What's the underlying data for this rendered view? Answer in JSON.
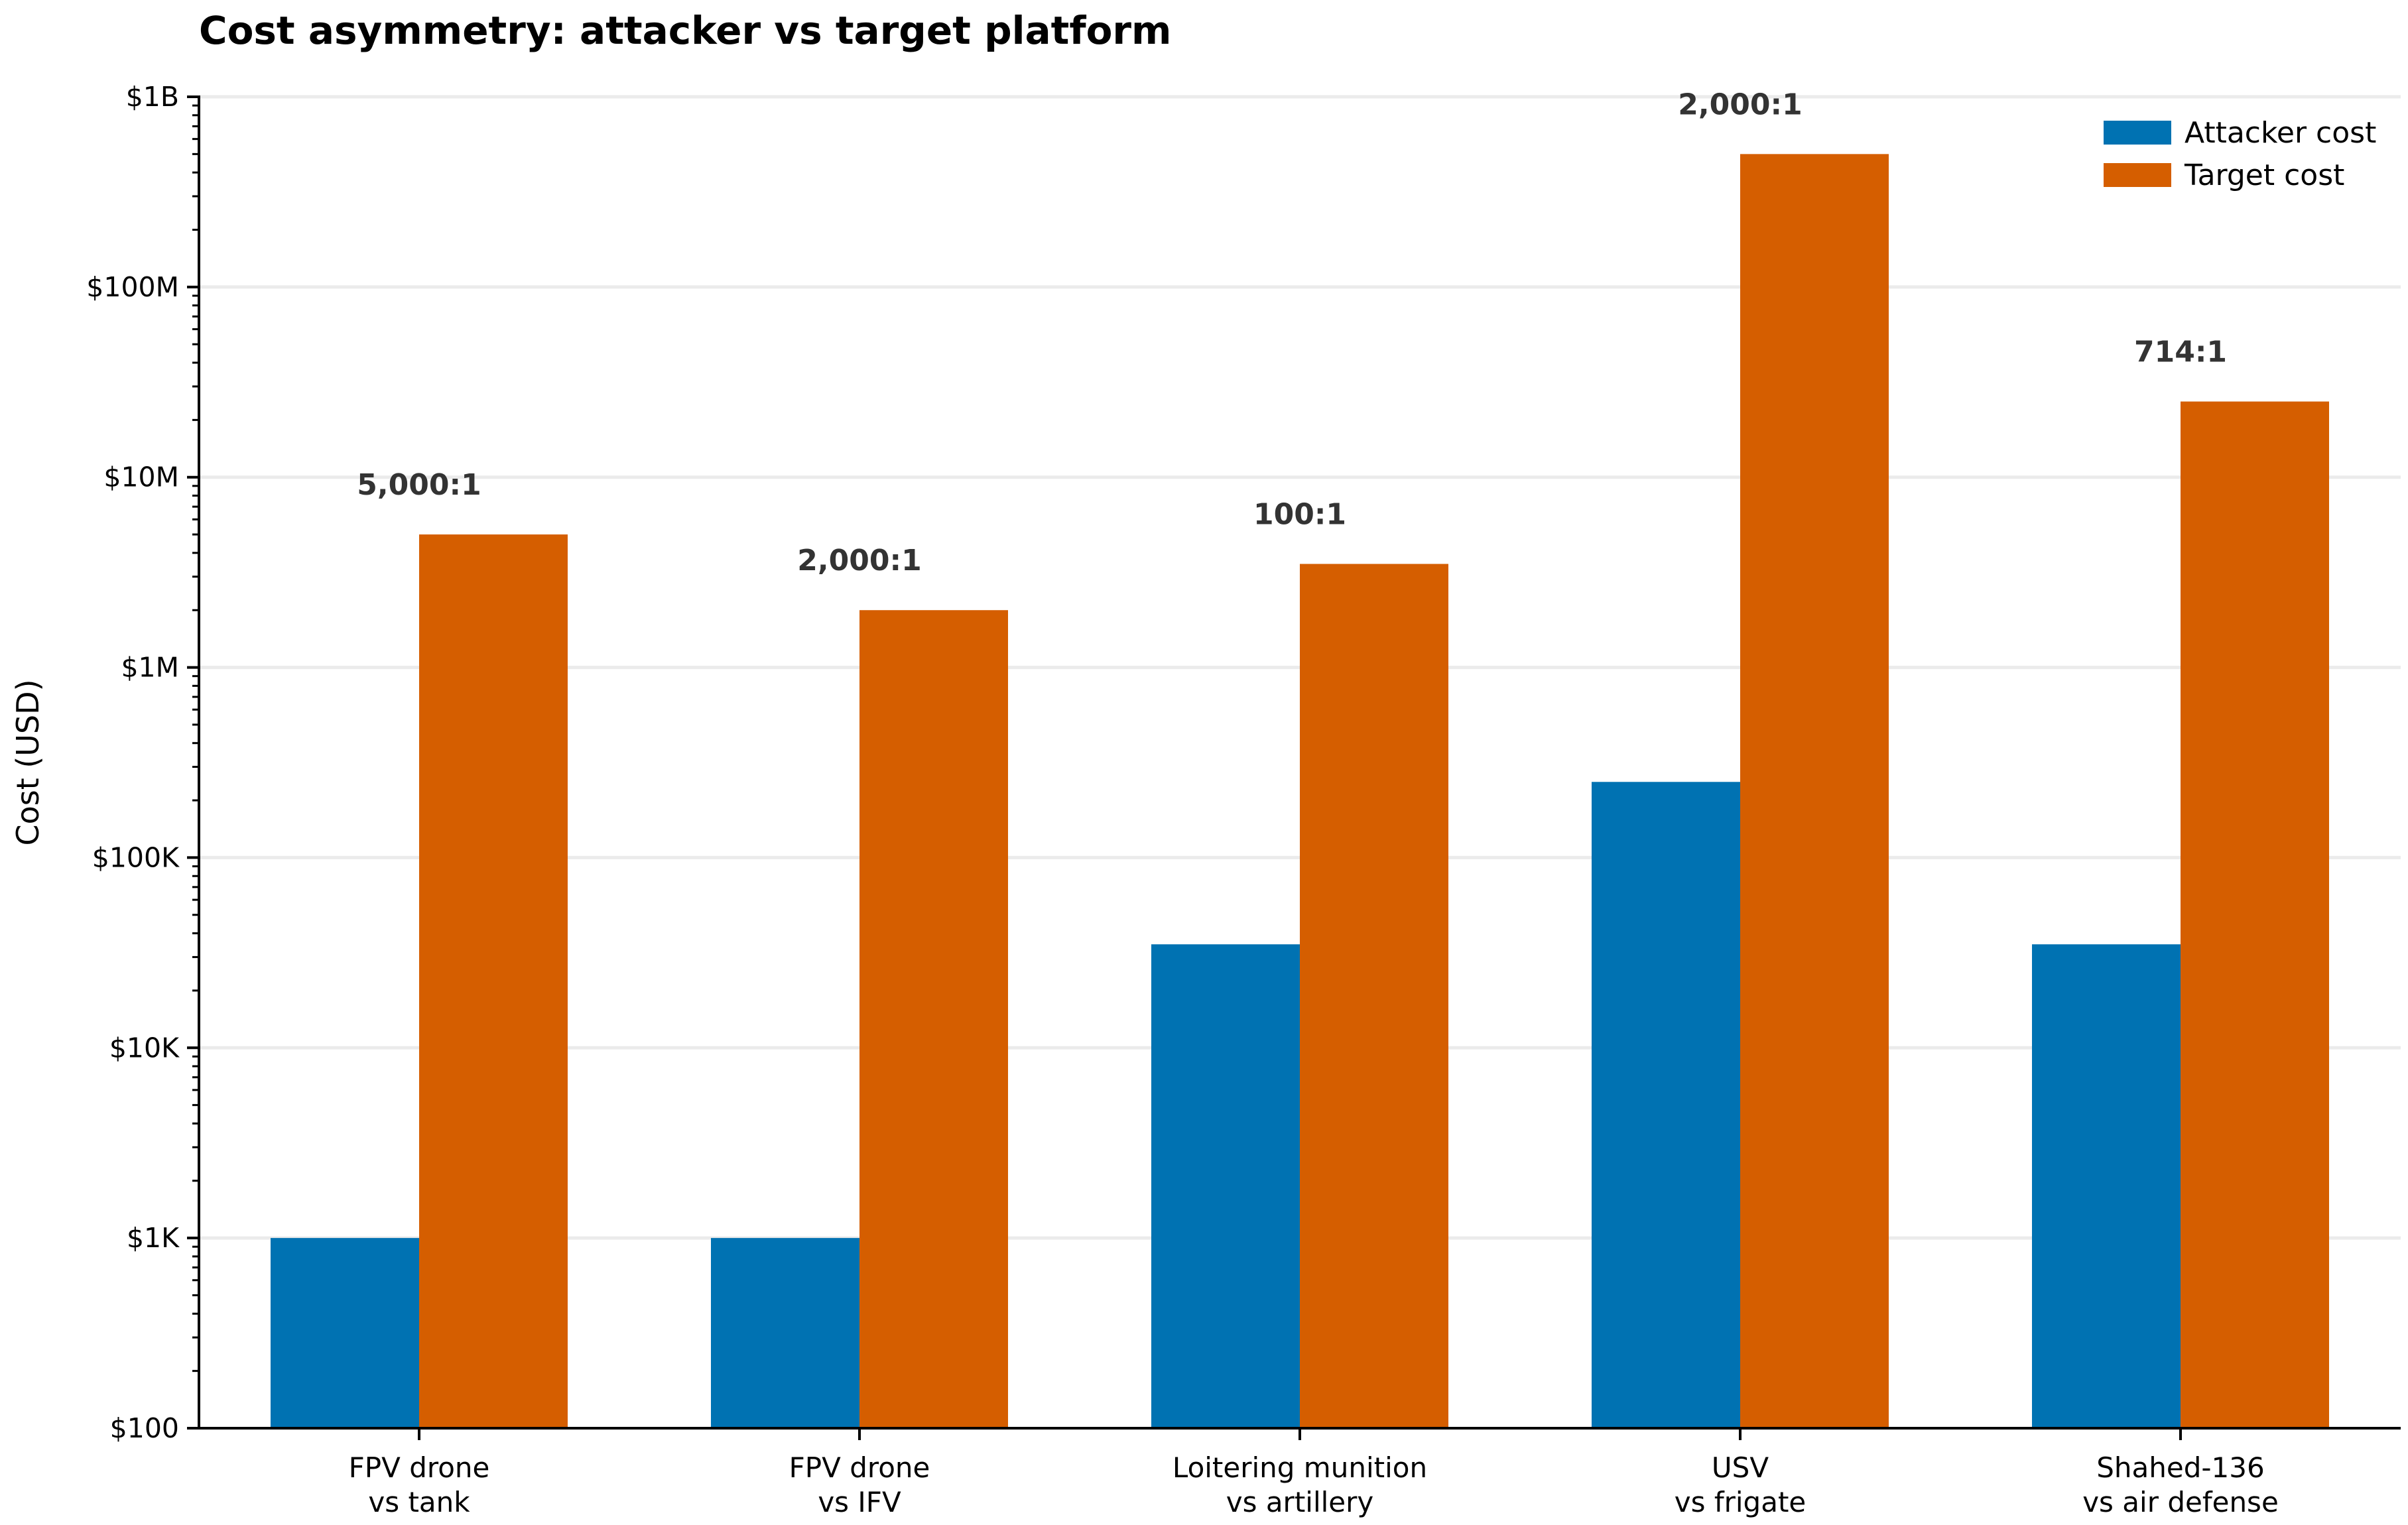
{
  "chart_data": {
    "type": "bar",
    "title": "Cost asymmetry: attacker vs target platform",
    "ylabel": "Cost (USD)",
    "xlabel": "",
    "yscale": "log",
    "ylim": [
      100,
      1000000000
    ],
    "yticks": [
      {
        "value": 100,
        "label": "$100"
      },
      {
        "value": 1000,
        "label": "$1K"
      },
      {
        "value": 10000,
        "label": "$10K"
      },
      {
        "value": 100000,
        "label": "$100K"
      },
      {
        "value": 1000000,
        "label": "$1M"
      },
      {
        "value": 10000000,
        "label": "$10M"
      },
      {
        "value": 100000000,
        "label": "$100M"
      },
      {
        "value": 1000000000,
        "label": "$1B"
      }
    ],
    "categories": [
      [
        "FPV drone",
        "vs tank"
      ],
      [
        "FPV drone",
        "vs IFV"
      ],
      [
        "Loitering munition",
        "vs artillery"
      ],
      [
        "USV",
        "vs frigate"
      ],
      [
        "Shahed-136",
        "vs air defense"
      ]
    ],
    "series": [
      {
        "name": "Attacker cost",
        "color": "#0072b2",
        "values": [
          1000,
          1000,
          35000,
          250000,
          35000
        ]
      },
      {
        "name": "Target cost",
        "color": "#d55e00",
        "values": [
          5000000,
          2000000,
          3500000,
          500000000,
          25000000
        ]
      }
    ],
    "ratio_labels": [
      "5,000:1",
      "2,000:1",
      "100:1",
      "2,000:1",
      "714:1"
    ],
    "grid": true,
    "legend_position": "top-right"
  }
}
